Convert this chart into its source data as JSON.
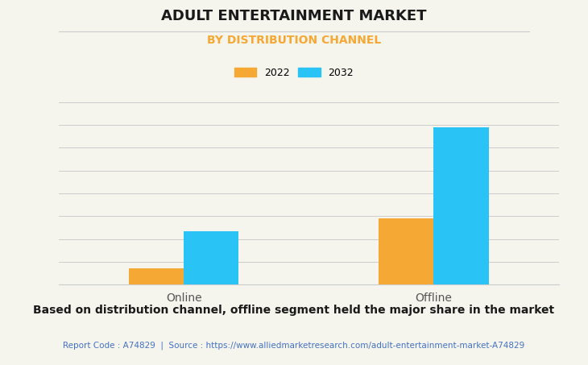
{
  "title": "ADULT ENTERTAINMENT MARKET",
  "subtitle": "BY DISTRIBUTION CHANNEL",
  "categories": [
    "Online",
    "Offline"
  ],
  "years": [
    "2022",
    "2032"
  ],
  "values_2022": [
    1.0,
    4.0
  ],
  "values_2032": [
    3.2,
    9.5
  ],
  "color_2022": "#F5A833",
  "color_2032": "#29C4F5",
  "title_fontsize": 13,
  "subtitle_fontsize": 10,
  "subtitle_color": "#F5A833",
  "legend_fontsize": 9,
  "xticklabel_fontsize": 10,
  "background_color": "#F5F5EE",
  "grid_color": "#CCCCCC",
  "bar_width": 0.22,
  "footer_text": "Based on distribution channel, offline segment held the major share in the market",
  "report_text": "Report Code : A74829  |  Source : https://www.alliedmarketresearch.com/adult-entertainment-market-A74829",
  "report_color": "#4472C4",
  "footer_fontsize": 10,
  "report_fontsize": 7.5,
  "ylim_max": 11.0
}
